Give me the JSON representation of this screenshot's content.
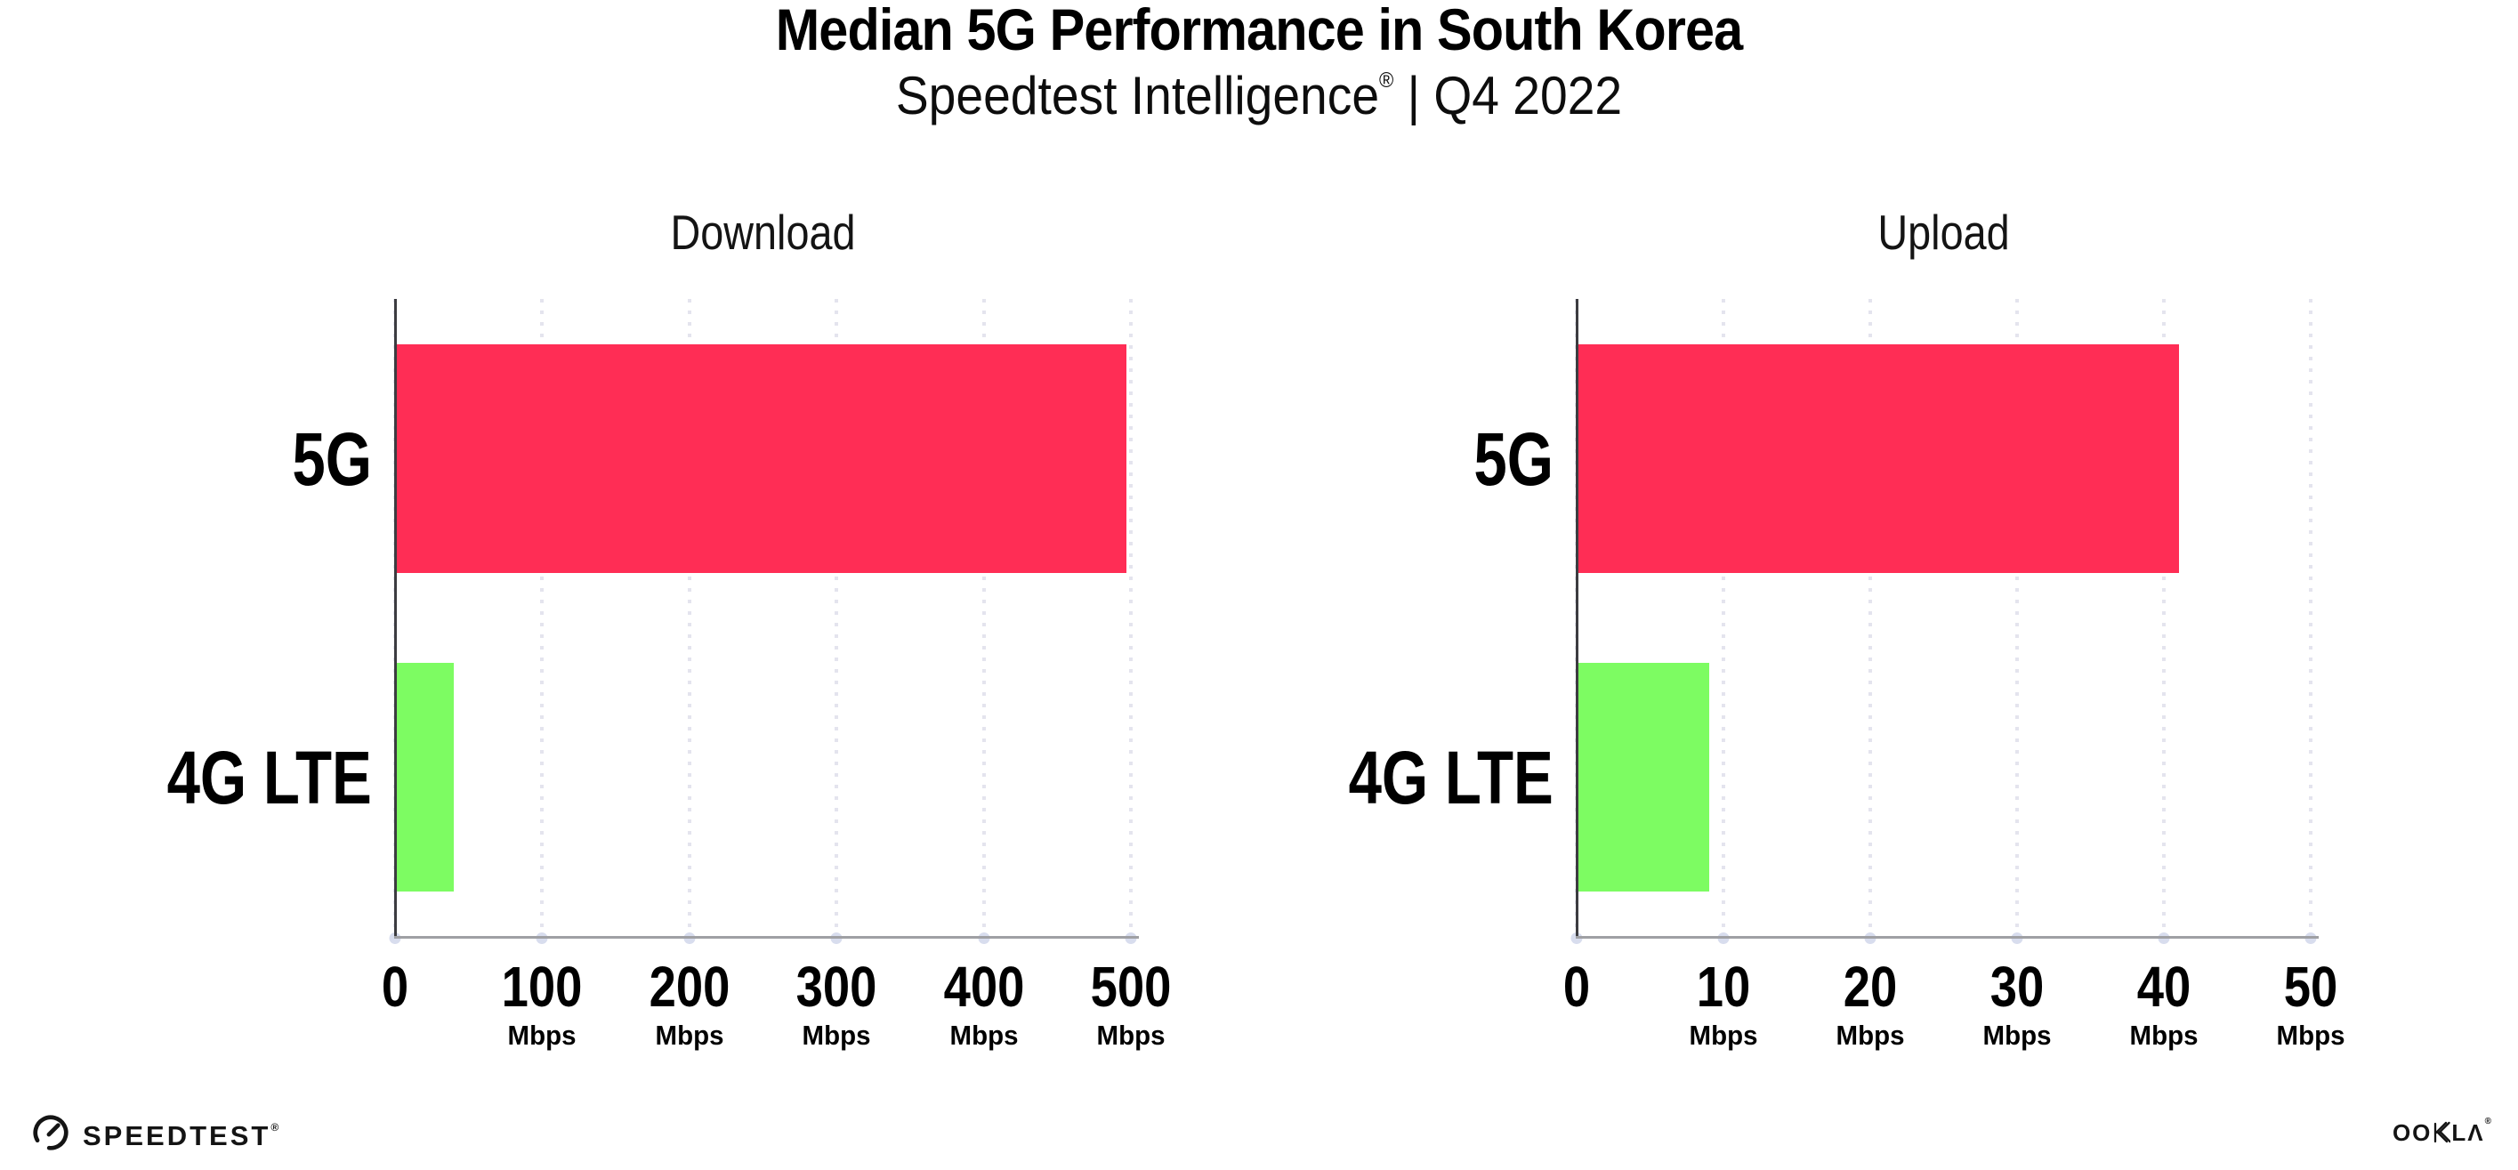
{
  "header": {
    "title": "Median 5G Performance in South Korea",
    "subtitle_brand": "Speedtest Intelligence",
    "subtitle_reg": "®",
    "subtitle_rest": " | Q4 2022"
  },
  "chart_data": [
    {
      "type": "bar",
      "orientation": "horizontal",
      "title": "Download",
      "categories": [
        "5G",
        "4G LTE"
      ],
      "values": [
        497,
        40
      ],
      "unit": "Mbps",
      "xlim": [
        0,
        500
      ],
      "xticks": [
        0,
        100,
        200,
        300,
        400,
        500
      ],
      "ticks": [
        {
          "label": "0",
          "unit": ""
        },
        {
          "label": "100",
          "unit": "Mbps"
        },
        {
          "label": "200",
          "unit": "Mbps"
        },
        {
          "label": "300",
          "unit": "Mbps"
        },
        {
          "label": "400",
          "unit": "Mbps"
        },
        {
          "label": "500",
          "unit": "Mbps"
        }
      ],
      "bar_colors": [
        "#FF2D55",
        "#7DFC62"
      ],
      "grid": "dotted-vertical",
      "legend": "none"
    },
    {
      "type": "bar",
      "orientation": "horizontal",
      "title": "Upload",
      "categories": [
        "5G",
        "4G LTE"
      ],
      "values": [
        41,
        9
      ],
      "unit": "Mbps",
      "xlim": [
        0,
        50
      ],
      "xticks": [
        0,
        10,
        20,
        30,
        40,
        50
      ],
      "ticks": [
        {
          "label": "0",
          "unit": ""
        },
        {
          "label": "10",
          "unit": "Mbps"
        },
        {
          "label": "20",
          "unit": "Mbps"
        },
        {
          "label": "30",
          "unit": "Mbps"
        },
        {
          "label": "40",
          "unit": "Mbps"
        },
        {
          "label": "50",
          "unit": "Mbps"
        }
      ],
      "bar_colors": [
        "#FF2D55",
        "#7DFC62"
      ],
      "grid": "dotted-vertical",
      "legend": "none"
    }
  ],
  "footer": {
    "speedtest_label": "SPEEDTEST",
    "speedtest_reg": "®",
    "ookla_left": "OO",
    "ookla_right": "LΛ",
    "ookla_reg": "®",
    "ookla_full_name": "OOKLA"
  },
  "colors": {
    "bar_5g": "#FF2D55",
    "bar_4g_lte": "#7DFC62",
    "gridline": "#E4E4EE",
    "y_axis": "#3C3C40",
    "x_axis": "#9FA0A4",
    "text": "#000000"
  }
}
